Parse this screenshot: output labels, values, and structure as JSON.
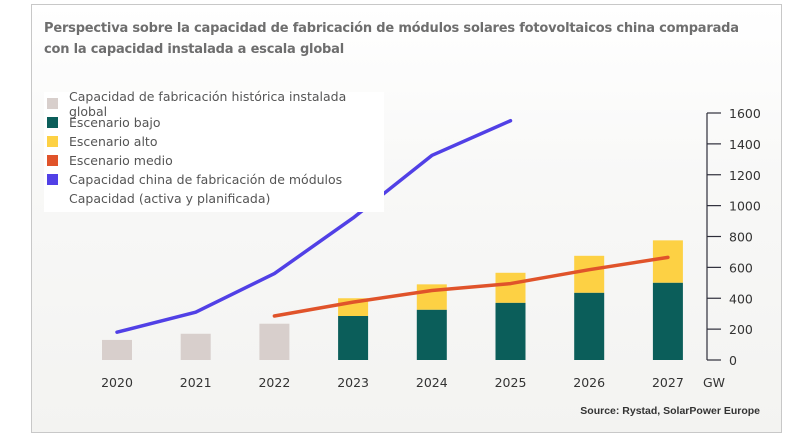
{
  "title": "Perspectiva sobre la capacidad de fabricación de módulos solares fotovoltaicos china comparada con la capacidad instalada a escala global",
  "source": "Source: Rystad, SolarPower Europe",
  "chart_data": {
    "type": "bar",
    "title": "Perspectiva sobre la capacidad de fabricación de módulos solares fotovoltaicos china comparada con la capacidad instalada a escala global",
    "xlabel": "",
    "ylabel": "GW",
    "unit_label": "GW",
    "ylim": [
      0,
      1600
    ],
    "yticks": [
      0,
      200,
      400,
      600,
      800,
      1000,
      1200,
      1400,
      1600
    ],
    "y_axis_position": "right",
    "grid": false,
    "legend_position": "top-left",
    "categories": [
      "2020",
      "2021",
      "2022",
      "2023",
      "2024",
      "2025",
      "2026",
      "2027"
    ],
    "series": [
      {
        "name": "Capacidad de fabricación histórica instalada global",
        "kind": "bar",
        "color": "#d8cfcc",
        "values": [
          130,
          170,
          235,
          null,
          null,
          null,
          null,
          null
        ]
      },
      {
        "name": "Escenario bajo",
        "kind": "bar-stack-base",
        "color": "#0b5e5a",
        "values": [
          null,
          null,
          null,
          285,
          325,
          370,
          435,
          500
        ]
      },
      {
        "name": "Escenario alto",
        "kind": "bar-stack-total",
        "color": "#fdd144",
        "values": [
          null,
          null,
          null,
          400,
          490,
          565,
          675,
          775
        ]
      },
      {
        "name": "Escenario medio",
        "kind": "line",
        "color": "#e0532a",
        "values": [
          null,
          null,
          285,
          375,
          450,
          495,
          585,
          665
        ]
      },
      {
        "name": "Capacidad china de fabricación de módulos",
        "name_line2": "Capacidad (activa y planificada)",
        "kind": "line",
        "color": "#5140e6",
        "values": [
          180,
          310,
          560,
          920,
          1325,
          1550,
          null,
          null
        ]
      }
    ]
  }
}
